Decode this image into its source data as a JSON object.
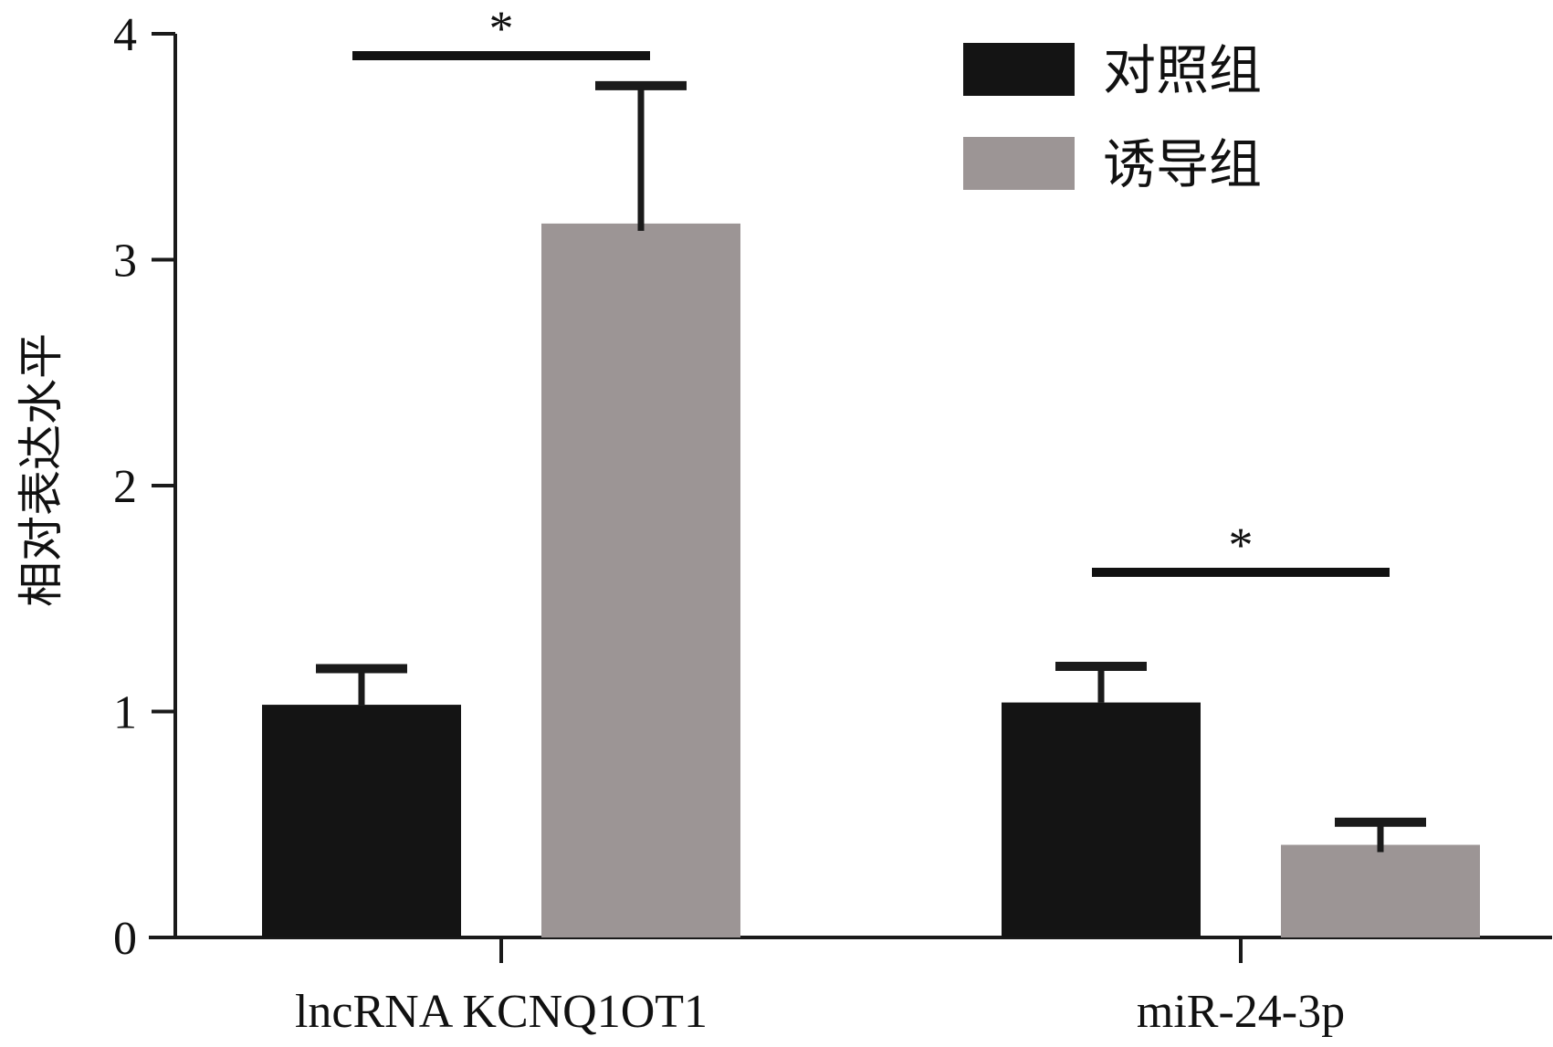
{
  "chart_data": {
    "type": "bar",
    "title": "",
    "xlabel": "",
    "ylabel": "相对表达水平",
    "ylim": [
      0,
      4
    ],
    "yticks": [
      "0",
      "1",
      "2",
      "3",
      "4"
    ],
    "grid": false,
    "legend_position": "top-right",
    "categories": [
      "lncRNA KCNQ1OT1",
      "miR-24-3p"
    ],
    "series": [
      {
        "name": "对照组",
        "color": "#141414",
        "values": [
          1.03,
          1.04
        ],
        "errors": [
          0.16,
          0.16
        ]
      },
      {
        "name": "诱导组",
        "color": "#9c9595",
        "values": [
          3.16,
          0.41
        ],
        "errors": [
          0.61,
          0.1
        ]
      }
    ],
    "annotations": [
      {
        "text": "*",
        "category_index": 0
      },
      {
        "text": "*",
        "category_index": 1
      }
    ]
  }
}
